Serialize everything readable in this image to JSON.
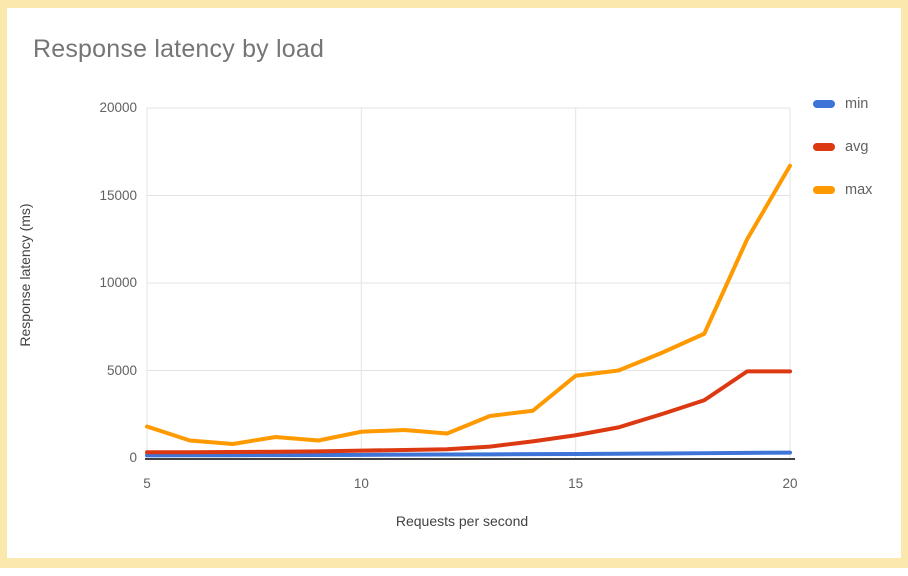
{
  "page": {
    "border_color": "#FAE8AC",
    "card_background": "#FFFFFF"
  },
  "colors": {
    "title_text": "#757575",
    "axis_tick_text": "#616161",
    "axis_title_text": "#424242",
    "legend_text": "#616161",
    "gridline": "#E3E3E3",
    "baseline": "#424242"
  },
  "chart_data": {
    "type": "line",
    "title": "Response latency by load",
    "xlabel": "Requests per second",
    "ylabel": "Response latency (ms)",
    "x": [
      5,
      6,
      7,
      8,
      9,
      10,
      11,
      12,
      13,
      14,
      15,
      16,
      17,
      18,
      19,
      20
    ],
    "series": [
      {
        "name": "min",
        "color": "#3E73D8",
        "values": [
          150,
          155,
          160,
          165,
          170,
          180,
          190,
          200,
          210,
          220,
          230,
          245,
          260,
          275,
          290,
          310
        ]
      },
      {
        "name": "avg",
        "color": "#DC3912",
        "values": [
          330,
          330,
          340,
          360,
          380,
          420,
          460,
          500,
          650,
          950,
          1300,
          1750,
          2500,
          3300,
          4950,
          4950
        ]
      },
      {
        "name": "max",
        "color": "#FF9900",
        "values": [
          1800,
          1000,
          800,
          1200,
          1000,
          1500,
          1600,
          1400,
          2400,
          2700,
          4700,
          5000,
          6000,
          7100,
          12500,
          16700
        ]
      }
    ],
    "xlim": [
      5,
      20
    ],
    "ylim": [
      0,
      20000
    ],
    "x_ticks": [
      "5",
      "10",
      "15",
      "20"
    ],
    "y_ticks": [
      "0",
      "5000",
      "10000",
      "15000",
      "20000"
    ],
    "grid": true,
    "legend_position": "right"
  }
}
